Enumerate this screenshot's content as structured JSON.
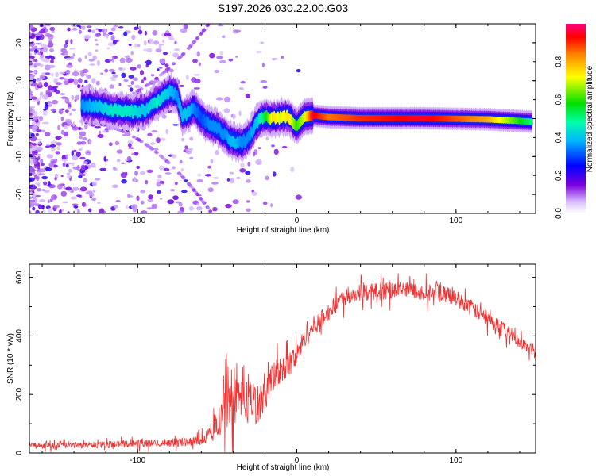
{
  "title": "S197.2026.030.22.00.G03",
  "chart_data": [
    {
      "type": "heatmap",
      "xlabel": "Height of straight line (km)",
      "ylabel": "Frequency (Hz)",
      "xlim": [
        -168,
        150
      ],
      "ylim": [
        -25,
        25
      ],
      "xticks": [
        -100,
        0,
        100
      ],
      "yticks": [
        -20,
        -10,
        0,
        10,
        20
      ],
      "ridge": {
        "x": [
          -135,
          -125,
          -115,
          -105,
          -95,
          -88,
          -80,
          -75,
          -72,
          -68,
          -65,
          -60,
          -55,
          -50,
          -45,
          -40,
          -35,
          -30,
          -25,
          -20,
          -15,
          -10,
          -5,
          0,
          5,
          10,
          20,
          40,
          80,
          120,
          148
        ],
        "frequency": [
          3.5,
          3.2,
          2.2,
          1.8,
          2.2,
          4.5,
          7.0,
          6.0,
          0.5,
          1.5,
          3.0,
          0.0,
          -1.5,
          -2.5,
          -4.5,
          -6.0,
          -6.5,
          -5.0,
          -1.0,
          0.5,
          0.0,
          0.5,
          0.5,
          -2.0,
          0.5,
          0.8,
          0.4,
          0.1,
          0.1,
          -0.2,
          -0.8
        ],
        "amplitude": [
          0.35,
          0.4,
          0.45,
          0.45,
          0.4,
          0.45,
          0.4,
          0.35,
          0.4,
          0.4,
          0.35,
          0.3,
          0.35,
          0.35,
          0.35,
          0.4,
          0.35,
          0.35,
          0.4,
          0.55,
          0.75,
          0.7,
          0.75,
          0.6,
          0.7,
          0.95,
          0.85,
          0.9,
          0.95,
          0.8,
          0.5
        ]
      },
      "colorbar": {
        "label": "Normalized spectral amplitude",
        "range": [
          0,
          1
        ],
        "ticks": [
          "0.0",
          "0.2",
          "0.4",
          "0.6",
          "0.8"
        ]
      }
    },
    {
      "type": "line",
      "xlabel": "Height of straight line (km)",
      "ylabel": "SNR (10 * v/v)",
      "xlim": [
        -168,
        150
      ],
      "ylim": [
        0,
        645
      ],
      "xticks": [
        -100,
        0,
        100
      ],
      "yticks": [
        0,
        200,
        400,
        600
      ],
      "color": "#ee3333",
      "series": [
        {
          "name": "SNR",
          "x": [
            -168,
            -140,
            -110,
            -80,
            -70,
            -60,
            -55,
            -50,
            -45,
            -40,
            -35,
            -30,
            -25,
            -20,
            -15,
            -10,
            -5,
            0,
            5,
            10,
            15,
            20,
            25,
            30,
            40,
            50,
            60,
            70,
            80,
            90,
            100,
            110,
            120,
            130,
            140,
            150
          ],
          "values": [
            25,
            26,
            30,
            35,
            38,
            45,
            65,
            110,
            160,
            200,
            185,
            175,
            165,
            215,
            250,
            285,
            300,
            330,
            395,
            430,
            455,
            480,
            510,
            535,
            548,
            552,
            556,
            556,
            552,
            545,
            530,
            495,
            455,
            425,
            380,
            335
          ],
          "noise": [
            10,
            10,
            12,
            14,
            15,
            18,
            22,
            50,
            80,
            100,
            85,
            75,
            70,
            65,
            55,
            50,
            45,
            40,
            35,
            35,
            32,
            30,
            30,
            30,
            30,
            30,
            30,
            30,
            30,
            30,
            28,
            28,
            26,
            25,
            22,
            18
          ]
        }
      ]
    }
  ]
}
